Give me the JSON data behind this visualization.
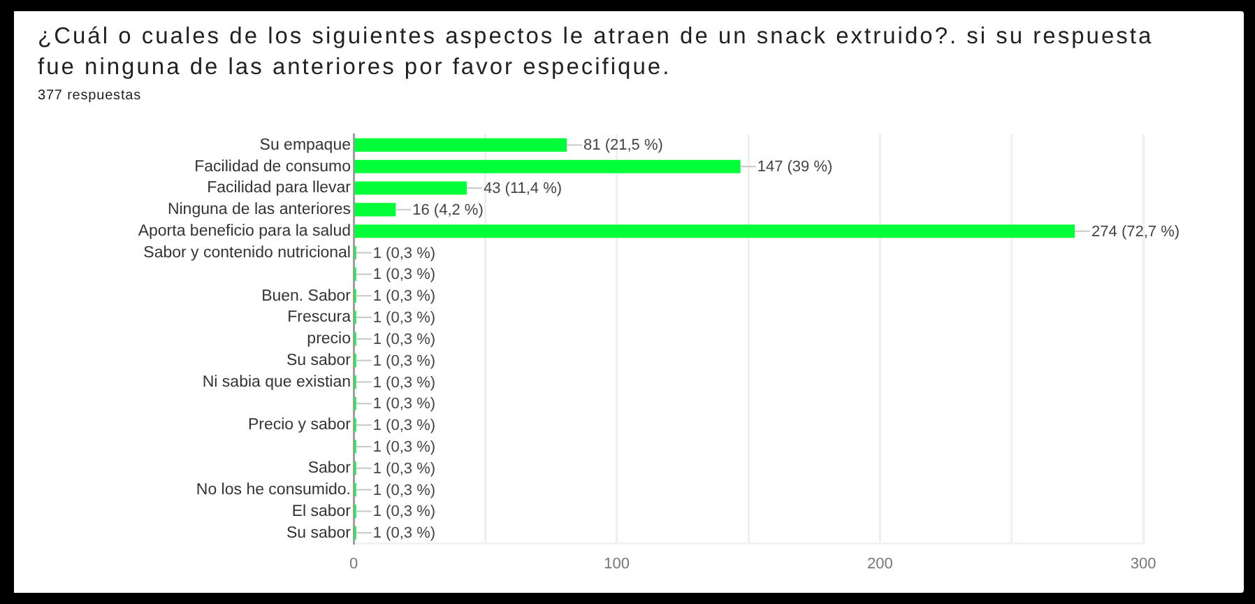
{
  "chart_data": {
    "type": "bar",
    "orientation": "horizontal",
    "title": "¿Cuál o cuales de los siguientes aspectos le atraen de un snack extruido?. si su respuesta fue ninguna de las anteriores por favor especifique.",
    "subtitle": "377 respuestas",
    "categories": [
      "Su empaque",
      "Facilidad de consumo",
      "Facilidad para llevar",
      "Ninguna de las anteriores",
      "Aporta beneficio para la salud",
      "Sabor y contenido nutricional",
      null,
      "Buen. Sabor",
      "Frescura",
      "precio",
      "Su sabor",
      "Ni sabia que existian",
      null,
      "Precio y sabor",
      null,
      "Sabor",
      "No los he consumido.",
      "El sabor",
      "Su sabor"
    ],
    "values": [
      81,
      147,
      43,
      16,
      274,
      1,
      1,
      1,
      1,
      1,
      1,
      1,
      1,
      1,
      1,
      1,
      1,
      1,
      1
    ],
    "value_labels": [
      "81 (21,5 %)",
      "147 (39 %)",
      "43 (11,4 %)",
      "16 (4,2 %)",
      "274 (72,7 %)",
      "1 (0,3 %)",
      "1 (0,3 %)",
      "1 (0,3 %)",
      "1 (0,3 %)",
      "1 (0,3 %)",
      "1 (0,3 %)",
      "1 (0,3 %)",
      "1 (0,3 %)",
      "1 (0,3 %)",
      "1 (0,3 %)",
      "1 (0,3 %)",
      "1 (0,3 %)",
      "1 (0,3 %)",
      "1 (0,3 %)"
    ],
    "color": "#00ff38",
    "xlim": [
      0,
      300
    ],
    "xticks": [
      0,
      {
        "value": 50,
        "label": null
      },
      100,
      {
        "value": 150,
        "label": null
      },
      200,
      {
        "value": 250,
        "label": null
      },
      300
    ],
    "grid": "x"
  }
}
